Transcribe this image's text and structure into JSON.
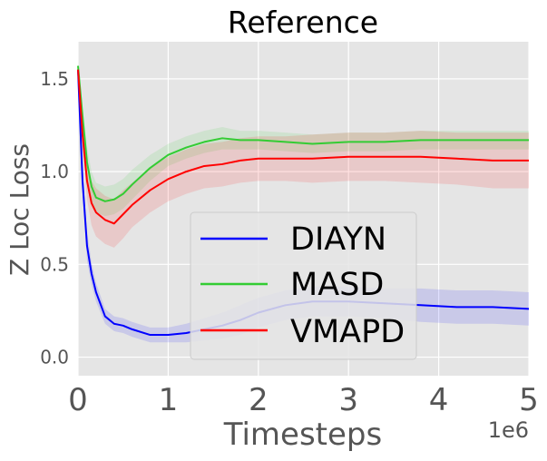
{
  "chart_data": {
    "type": "line",
    "title": "Reference",
    "xlabel": "Timesteps",
    "ylabel": "Z Loc Loss",
    "x_multiplier_label": "1e6",
    "xlim": [
      0,
      5
    ],
    "ylim": [
      -0.1,
      1.7
    ],
    "x_ticks": [
      "0",
      "1",
      "2",
      "3",
      "4",
      "5"
    ],
    "y_ticks": [
      "0.0",
      "0.5",
      "1.0",
      "1.5"
    ],
    "grid": true,
    "legend_position": "center-right",
    "colors": {
      "background": "#e5e5e5",
      "grid": "#ffffff",
      "text": "#555555"
    },
    "series": [
      {
        "name": "DIAYN",
        "color": "#0000ff",
        "x": [
          0,
          0.05,
          0.1,
          0.15,
          0.2,
          0.3,
          0.4,
          0.5,
          0.6,
          0.8,
          1.0,
          1.2,
          1.4,
          1.6,
          1.8,
          2.0,
          2.3,
          2.6,
          3.0,
          3.4,
          3.8,
          4.2,
          4.6,
          5.0
        ],
        "y": [
          1.55,
          0.95,
          0.6,
          0.45,
          0.35,
          0.22,
          0.18,
          0.17,
          0.15,
          0.12,
          0.12,
          0.13,
          0.15,
          0.17,
          0.2,
          0.24,
          0.28,
          0.3,
          0.3,
          0.29,
          0.28,
          0.27,
          0.27,
          0.26
        ],
        "band": [
          0.02,
          0.05,
          0.08,
          0.06,
          0.05,
          0.04,
          0.04,
          0.04,
          0.04,
          0.04,
          0.04,
          0.05,
          0.06,
          0.07,
          0.08,
          0.08,
          0.08,
          0.08,
          0.08,
          0.08,
          0.09,
          0.09,
          0.09,
          0.09
        ]
      },
      {
        "name": "MASD",
        "color": "#33cc33",
        "x": [
          0,
          0.05,
          0.1,
          0.15,
          0.2,
          0.3,
          0.4,
          0.5,
          0.6,
          0.8,
          1.0,
          1.2,
          1.4,
          1.6,
          1.8,
          2.0,
          2.3,
          2.6,
          3.0,
          3.4,
          3.8,
          4.2,
          4.6,
          5.0
        ],
        "y": [
          1.57,
          1.3,
          1.05,
          0.92,
          0.86,
          0.84,
          0.85,
          0.88,
          0.93,
          1.02,
          1.09,
          1.13,
          1.16,
          1.18,
          1.17,
          1.17,
          1.16,
          1.15,
          1.16,
          1.16,
          1.17,
          1.17,
          1.17,
          1.17
        ],
        "band": [
          0.02,
          0.05,
          0.08,
          0.08,
          0.08,
          0.08,
          0.08,
          0.08,
          0.08,
          0.07,
          0.06,
          0.06,
          0.06,
          0.06,
          0.05,
          0.05,
          0.05,
          0.05,
          0.05,
          0.05,
          0.05,
          0.05,
          0.05,
          0.05
        ]
      },
      {
        "name": "VMAPD",
        "color": "#ff0000",
        "x": [
          0,
          0.05,
          0.1,
          0.15,
          0.2,
          0.3,
          0.4,
          0.5,
          0.6,
          0.8,
          1.0,
          1.2,
          1.4,
          1.6,
          1.8,
          2.0,
          2.3,
          2.6,
          3.0,
          3.4,
          3.8,
          4.2,
          4.6,
          5.0
        ],
        "y": [
          1.55,
          1.2,
          0.95,
          0.83,
          0.78,
          0.74,
          0.72,
          0.77,
          0.82,
          0.9,
          0.96,
          1.0,
          1.03,
          1.04,
          1.06,
          1.07,
          1.07,
          1.07,
          1.08,
          1.08,
          1.08,
          1.07,
          1.06,
          1.06
        ],
        "band": [
          0.02,
          0.05,
          0.1,
          0.12,
          0.13,
          0.13,
          0.13,
          0.13,
          0.12,
          0.12,
          0.12,
          0.12,
          0.12,
          0.12,
          0.12,
          0.12,
          0.12,
          0.13,
          0.13,
          0.13,
          0.14,
          0.14,
          0.15,
          0.15
        ]
      }
    ]
  }
}
